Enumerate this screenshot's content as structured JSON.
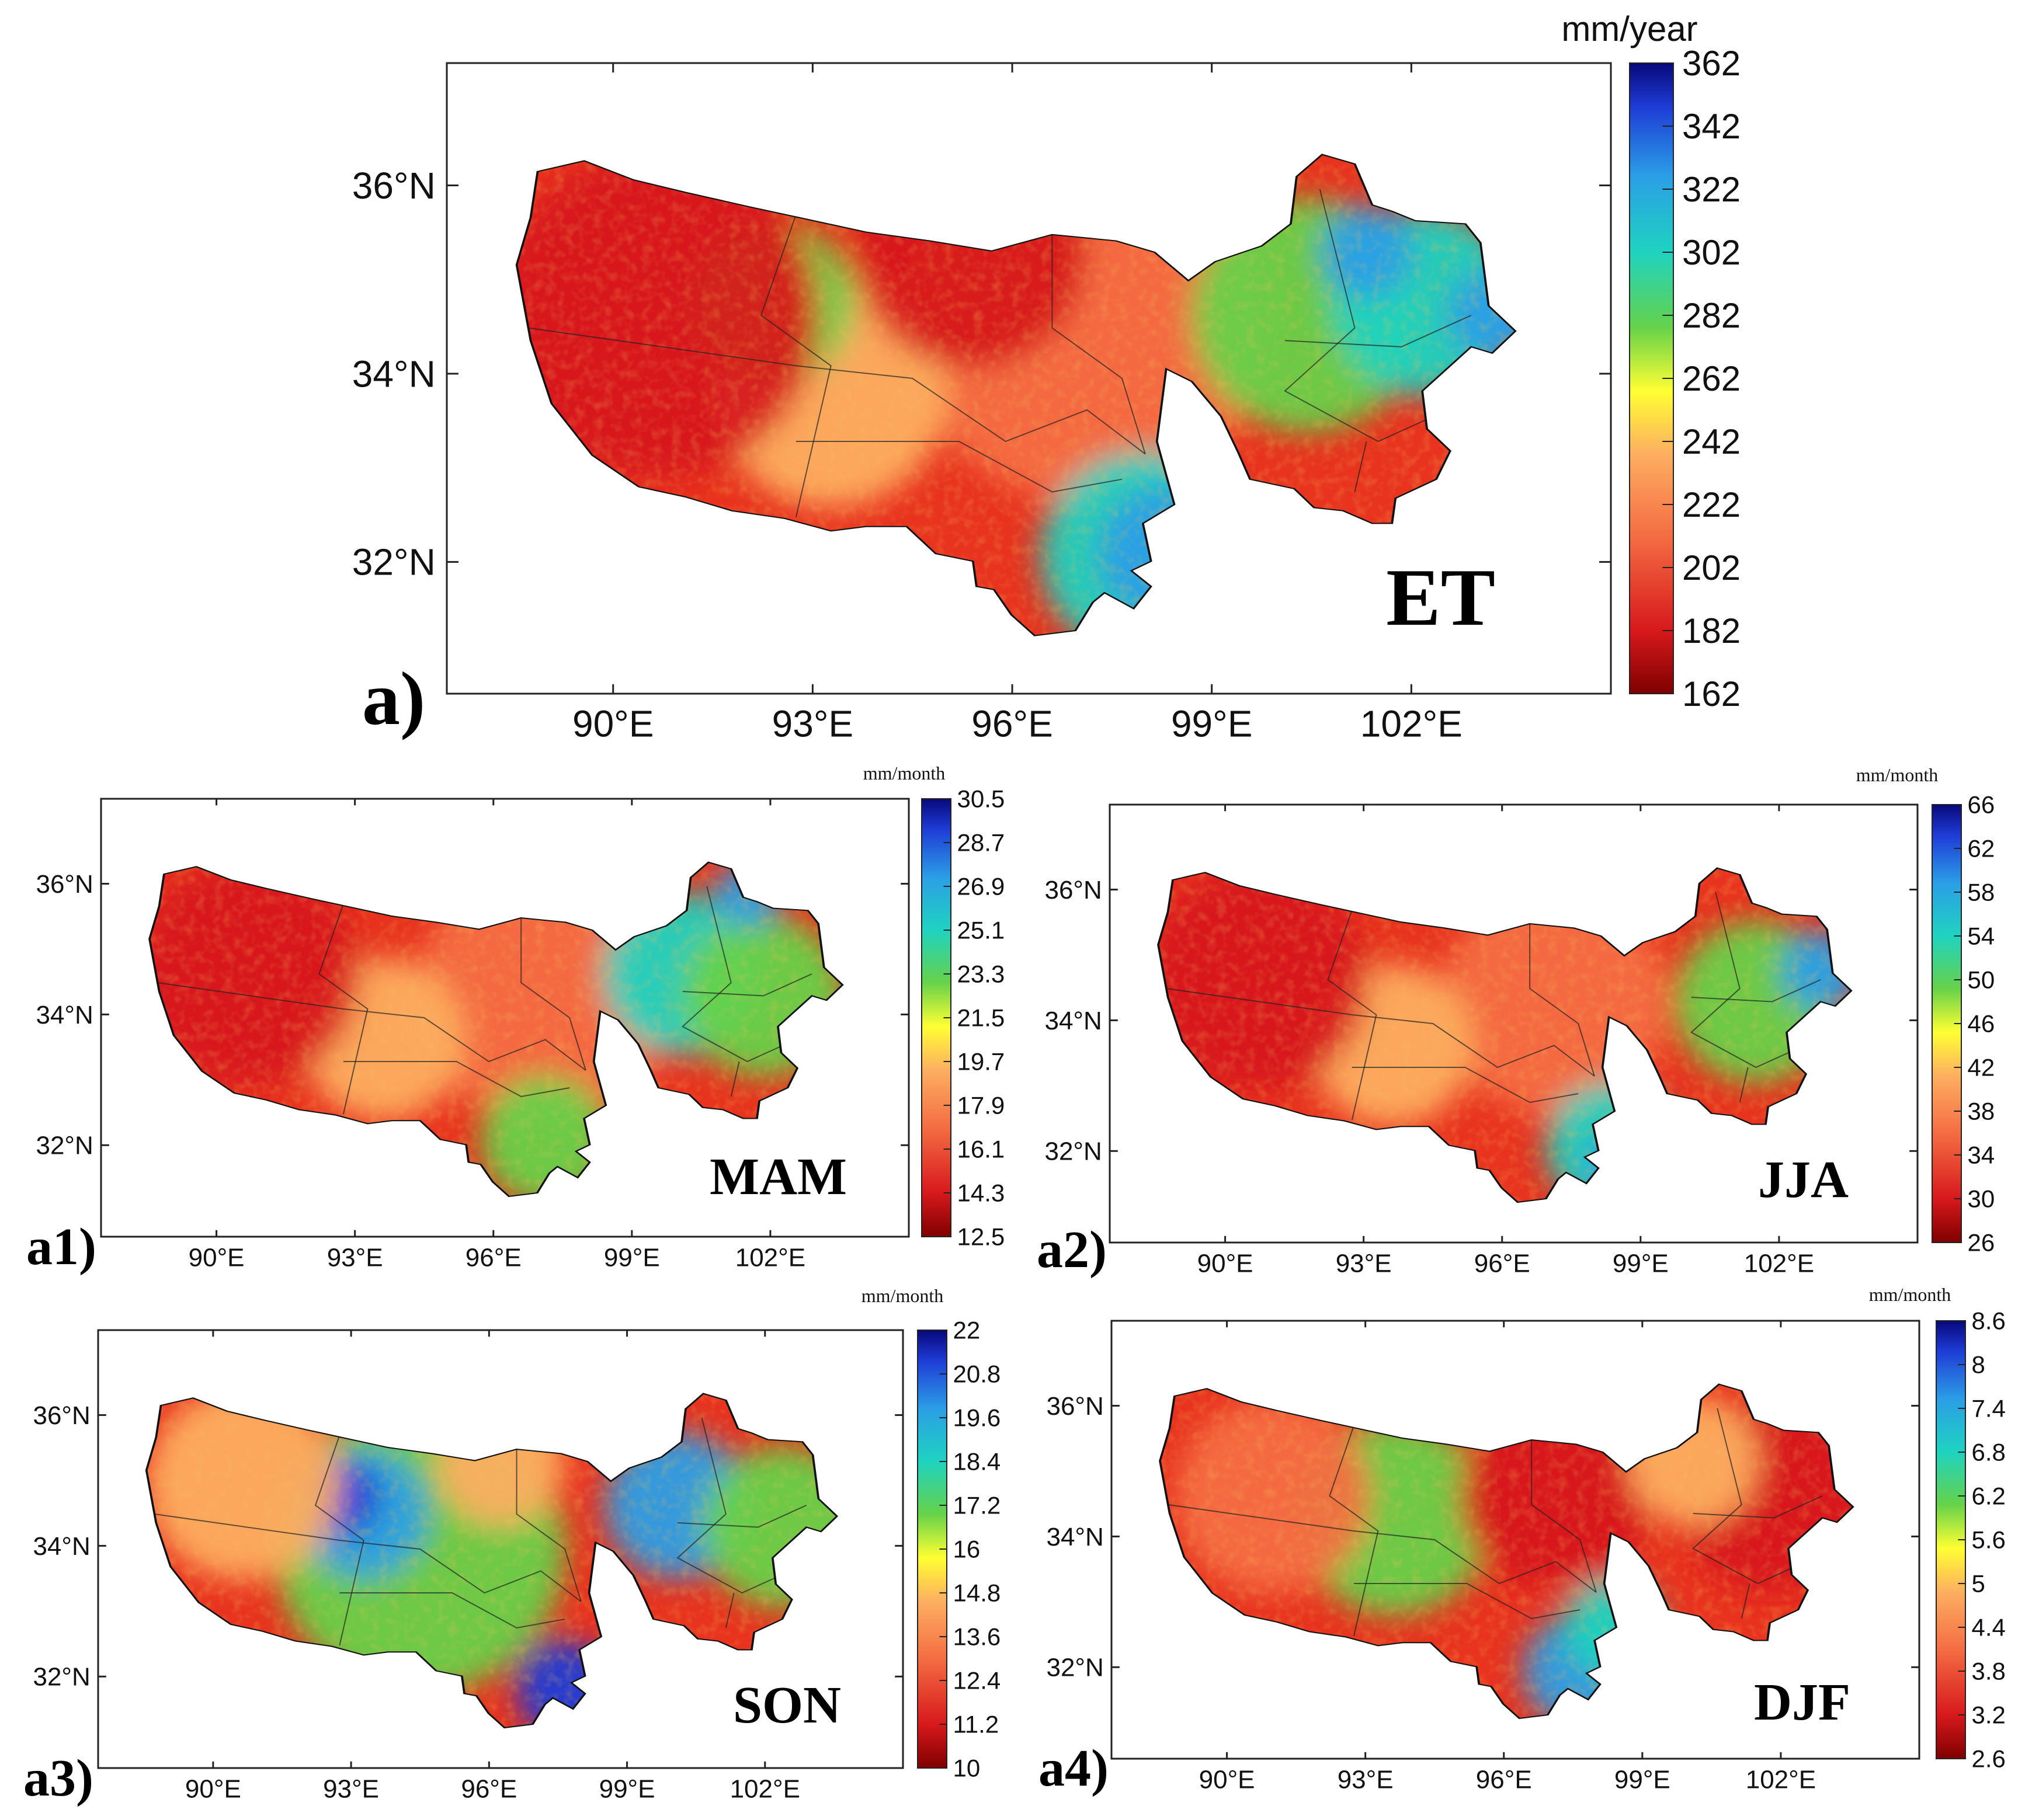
{
  "figure": {
    "panels": [
      {
        "id": "a",
        "panel_label": "a)",
        "variable_label": "ET",
        "unit": "mm/year",
        "x_ticks": [
          "90°E",
          "93°E",
          "96°E",
          "99°E",
          "102°E"
        ],
        "y_ticks": [
          "36°N",
          "34°N",
          "32°N"
        ],
        "colorbar_ticks": [
          "362",
          "342",
          "322",
          "302",
          "282",
          "262",
          "242",
          "222",
          "202",
          "182",
          "162"
        ]
      },
      {
        "id": "a1",
        "panel_label": "a1)",
        "variable_label": "MAM",
        "unit": "mm/month",
        "x_ticks": [
          "90°E",
          "93°E",
          "96°E",
          "99°E",
          "102°E"
        ],
        "y_ticks": [
          "36°N",
          "34°N",
          "32°N"
        ],
        "colorbar_ticks": [
          "30.5",
          "28.7",
          "26.9",
          "25.1",
          "23.3",
          "21.5",
          "19.7",
          "17.9",
          "16.1",
          "14.3",
          "12.5"
        ]
      },
      {
        "id": "a2",
        "panel_label": "a2)",
        "variable_label": "JJA",
        "unit": "mm/month",
        "x_ticks": [
          "90°E",
          "93°E",
          "96°E",
          "99°E",
          "102°E"
        ],
        "y_ticks": [
          "36°N",
          "34°N",
          "32°N"
        ],
        "colorbar_ticks": [
          "66",
          "62",
          "58",
          "54",
          "50",
          "46",
          "42",
          "38",
          "34",
          "30",
          "26"
        ]
      },
      {
        "id": "a3",
        "panel_label": "a3)",
        "variable_label": "SON",
        "unit": "mm/month",
        "x_ticks": [
          "90°E",
          "93°E",
          "96°E",
          "99°E",
          "102°E"
        ],
        "y_ticks": [
          "36°N",
          "34°N",
          "32°N"
        ],
        "colorbar_ticks": [
          "22",
          "20.8",
          "19.6",
          "18.4",
          "17.2",
          "16",
          "14.8",
          "13.6",
          "12.4",
          "11.2",
          "10"
        ]
      },
      {
        "id": "a4",
        "panel_label": "a4)",
        "variable_label": "DJF",
        "unit": "mm/month",
        "x_ticks": [
          "90°E",
          "93°E",
          "96°E",
          "99°E",
          "102°E"
        ],
        "y_ticks": [
          "36°N",
          "34°N",
          "32°N"
        ],
        "colorbar_ticks": [
          "8.6",
          "8",
          "7.4",
          "6.8",
          "6.2",
          "5.6",
          "5",
          "4.4",
          "3.8",
          "3.2",
          "2.6"
        ]
      }
    ],
    "colormap": [
      "#7f0000",
      "#d7191c",
      "#f46d43",
      "#fdae61",
      "#ffff33",
      "#66d24a",
      "#1fd3c0",
      "#2b9fe6",
      "#1e3cd6",
      "#08087a"
    ]
  }
}
